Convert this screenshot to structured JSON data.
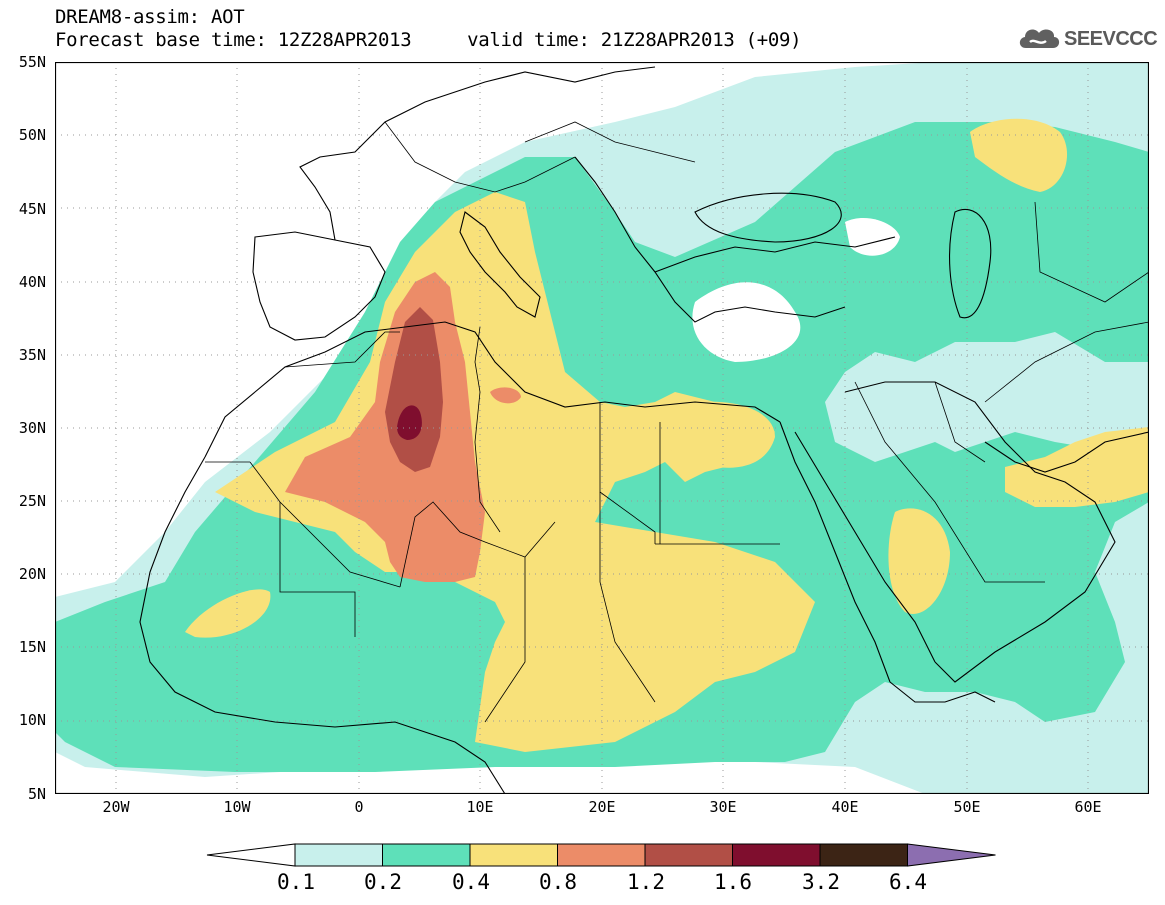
{
  "title": {
    "line1": "DREAM8-assim: AOT",
    "line2": "Forecast base time: 12Z28APR2013     valid time: 21Z28APR2013 (+09)"
  },
  "logo": {
    "text": "SEEVCCC",
    "icon": "cloud-icon"
  },
  "map": {
    "lat_labels": [
      "55N",
      "50N",
      "45N",
      "40N",
      "35N",
      "30N",
      "25N",
      "20N",
      "15N",
      "10N",
      "5N"
    ],
    "lon_labels": [
      "20W",
      "10W",
      "0",
      "10E",
      "20E",
      "30E",
      "40E",
      "50E",
      "60E"
    ],
    "lat_range": [
      5,
      55
    ],
    "lon_range": [
      -25,
      65
    ],
    "grid": "dotted"
  },
  "colorbar": {
    "labels": [
      "0.1",
      "0.2",
      "0.4",
      "0.8",
      "1.2",
      "1.6",
      "3.2",
      "6.4"
    ],
    "colors": [
      "#ffffff",
      "#c8f0ec",
      "#5ee0b9",
      "#f8e17a",
      "#ec8c68",
      "#b14f46",
      "#7f0e2e",
      "#3c2415",
      "#8c6eb0"
    ]
  }
}
